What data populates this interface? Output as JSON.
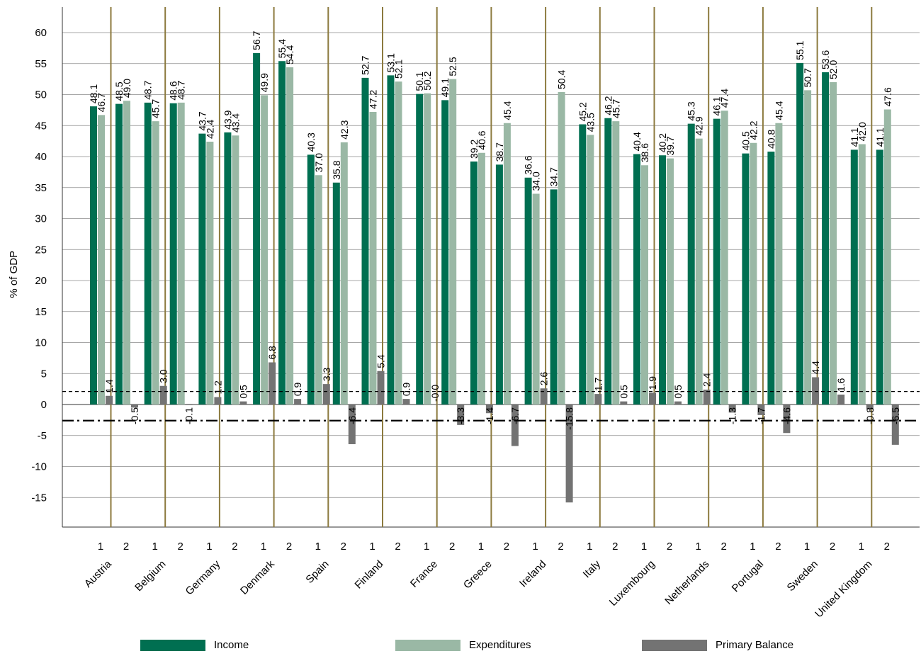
{
  "chart_data": {
    "type": "bar",
    "ylabel": "% of GDP",
    "ylim": [
      -20,
      64
    ],
    "yticks": [
      -15,
      -10,
      -5,
      0,
      5,
      10,
      15,
      20,
      25,
      30,
      35,
      40,
      45,
      50,
      55,
      60
    ],
    "period_labels": [
      "1",
      "2"
    ],
    "reference_lines": [
      {
        "style": "dashed",
        "value": 2.1
      },
      {
        "style": "dash-dot",
        "value": -2.6
      }
    ],
    "colors": {
      "income": "#006f51",
      "expenditures": "#9ab8a5",
      "balance": "#737373",
      "divider": "#8c7a3e"
    },
    "series_names": [
      "Income",
      "Expenditures",
      "Primary Balance"
    ],
    "countries": [
      {
        "name": "Austria",
        "periods": [
          {
            "income": 48.1,
            "expenditures": 46.7,
            "balance": 1.4,
            "labels": [
              "48.1",
              "46.7",
              "1.4"
            ]
          },
          {
            "income": 48.5,
            "expenditures": 49.0,
            "balance": -0.5,
            "labels": [
              "48.5",
              "49.0",
              "-0.5"
            ]
          }
        ]
      },
      {
        "name": "Belgium",
        "periods": [
          {
            "income": 48.7,
            "expenditures": 45.7,
            "balance": 3.0,
            "labels": [
              "48.7",
              "45.7",
              "3.0"
            ]
          },
          {
            "income": 48.6,
            "expenditures": 48.7,
            "balance": -0.1,
            "labels": [
              "48.6",
              "48.7",
              "-0.1"
            ]
          }
        ]
      },
      {
        "name": "Germany",
        "periods": [
          {
            "income": 43.7,
            "expenditures": 42.4,
            "balance": 1.2,
            "labels": [
              "43.7",
              "42.4",
              "1.2"
            ]
          },
          {
            "income": 43.9,
            "expenditures": 43.4,
            "balance": 0.5,
            "labels": [
              "43.9",
              "43.4",
              "0.5"
            ]
          }
        ]
      },
      {
        "name": "Denmark",
        "periods": [
          {
            "income": 56.7,
            "expenditures": 49.9,
            "balance": 6.8,
            "labels": [
              "56.7",
              "49.9",
              "6.8"
            ]
          },
          {
            "income": 55.4,
            "expenditures": 54.4,
            "balance": 0.9,
            "labels": [
              "55.4",
              "54.4",
              "0.9"
            ]
          }
        ]
      },
      {
        "name": "Spain",
        "periods": [
          {
            "income": 40.3,
            "expenditures": 37.0,
            "balance": 3.3,
            "labels": [
              "40.3",
              "37.0",
              "3.3"
            ]
          },
          {
            "income": 35.8,
            "expenditures": 42.3,
            "balance": -6.4,
            "labels": [
              "35.8",
              "42.3",
              "-6.4"
            ]
          }
        ]
      },
      {
        "name": "Finland",
        "periods": [
          {
            "income": 52.7,
            "expenditures": 47.2,
            "balance": 5.4,
            "labels": [
              "52.7",
              "47.2",
              "5.4"
            ]
          },
          {
            "income": 53.1,
            "expenditures": 52.1,
            "balance": 0.9,
            "labels": [
              "53.1",
              "52.1",
              "0.9"
            ]
          }
        ]
      },
      {
        "name": "France",
        "periods": [
          {
            "income": 50.1,
            "expenditures": 50.2,
            "balance": -0.0,
            "labels": [
              "50.1",
              "50.2",
              "-0.0"
            ]
          },
          {
            "income": 49.1,
            "expenditures": 52.5,
            "balance": -3.3,
            "labels": [
              "49.1",
              "52.5",
              "-3.3"
            ]
          }
        ]
      },
      {
        "name": "Greece",
        "periods": [
          {
            "income": 39.2,
            "expenditures": 40.6,
            "balance": -1.4,
            "labels": [
              "39.2",
              "40.6",
              "-1.4"
            ]
          },
          {
            "income": 38.7,
            "expenditures": 45.4,
            "balance": -6.7,
            "labels": [
              "38.7",
              "45.4",
              "-6.7"
            ]
          }
        ]
      },
      {
        "name": "Ireland",
        "periods": [
          {
            "income": 36.6,
            "expenditures": 34.0,
            "balance": 2.6,
            "labels": [
              "36.6",
              "34.0",
              "2.6"
            ]
          },
          {
            "income": 34.7,
            "expenditures": 50.4,
            "balance": -15.8,
            "labels": [
              "34.7",
              "50.4",
              "-15.8"
            ]
          }
        ]
      },
      {
        "name": "Italy",
        "periods": [
          {
            "income": 45.2,
            "expenditures": 43.5,
            "balance": 1.7,
            "labels": [
              "45.2",
              "43.5",
              "1.7"
            ]
          },
          {
            "income": 46.2,
            "expenditures": 45.7,
            "balance": 0.5,
            "labels": [
              "46.2",
              "45.7",
              "0.5"
            ]
          }
        ]
      },
      {
        "name": "Luxembourg",
        "periods": [
          {
            "income": 40.4,
            "expenditures": 38.6,
            "balance": 1.9,
            "labels": [
              "40.4",
              "38.6",
              "1.9"
            ]
          },
          {
            "income": 40.2,
            "expenditures": 39.7,
            "balance": 0.5,
            "labels": [
              "40.2",
              "39.7",
              "0.5"
            ]
          }
        ]
      },
      {
        "name": "Netherlands",
        "periods": [
          {
            "income": 45.3,
            "expenditures": 42.9,
            "balance": 2.4,
            "labels": [
              "45.3",
              "42.9",
              "2.4"
            ]
          },
          {
            "income": 46.1,
            "expenditures": 47.4,
            "balance": -1.3,
            "labels": [
              "46.1",
              "47.4",
              "-1.3"
            ]
          }
        ]
      },
      {
        "name": "Portugal",
        "periods": [
          {
            "income": 40.5,
            "expenditures": 42.2,
            "balance": -1.7,
            "labels": [
              "40.5",
              "42.2",
              "-1.7"
            ]
          },
          {
            "income": 40.8,
            "expenditures": 45.4,
            "balance": -4.6,
            "labels": [
              "40.8",
              "45.4",
              "-4.6"
            ]
          }
        ]
      },
      {
        "name": "Sweden",
        "periods": [
          {
            "income": 55.1,
            "expenditures": 50.7,
            "balance": 4.4,
            "labels": [
              "55.1",
              "50.7",
              "4.4"
            ]
          },
          {
            "income": 53.6,
            "expenditures": 52.0,
            "balance": 1.6,
            "labels": [
              "53.6",
              "52.0",
              "1.6"
            ]
          }
        ]
      },
      {
        "name": "United Kingdom",
        "periods": [
          {
            "income": 41.1,
            "expenditures": 42.0,
            "balance": -0.8,
            "labels": [
              "41.1",
              "42.0",
              "-0.8"
            ]
          },
          {
            "income": 41.1,
            "expenditures": 47.6,
            "balance": -6.5,
            "labels": [
              "41.1",
              "47.6",
              "-6.5"
            ]
          }
        ]
      }
    ]
  },
  "legend": {
    "income_label": "Income",
    "expenditures_label": "Expenditures",
    "balance_label": "Primary Balance"
  }
}
